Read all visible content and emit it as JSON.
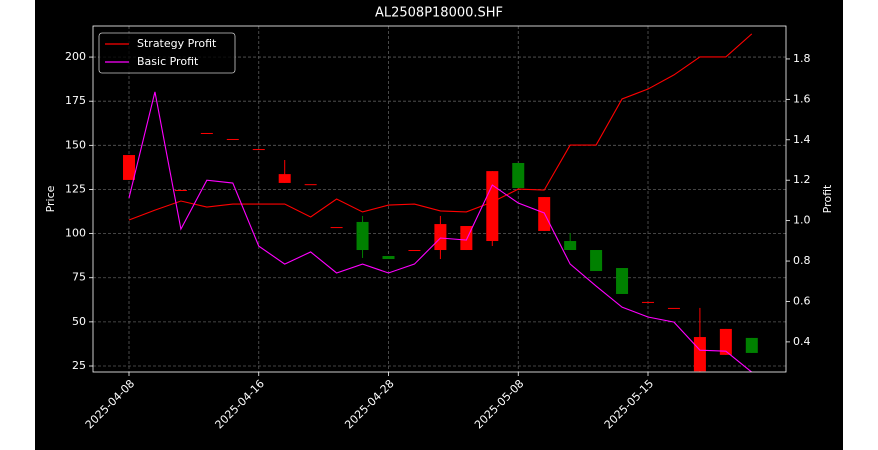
{
  "chart_data": {
    "type": "candlestick",
    "title": "AL2508P18000.SHF",
    "ylabel": "Price",
    "y2label": "Profit",
    "categories": [
      "2025-04-08",
      null,
      null,
      null,
      null,
      "2025-04-16",
      null,
      null,
      null,
      null,
      "2025-04-28",
      null,
      null,
      null,
      null,
      "2025-05-08",
      null,
      null,
      null,
      null,
      "2025-05-15",
      null,
      null,
      null,
      null
    ],
    "open": [
      130.4,
      null,
      124.7,
      157,
      153.6,
      147.9,
      128.7,
      128,
      103.7,
      106.6,
      87.3,
      90.7,
      90.7,
      90.7,
      95.8,
      140,
      101.5,
      95.8,
      90.7,
      80.5,
      61.3,
      57.9,
      22,
      31.3,
      40.9
    ],
    "high": [
      144.5,
      null,
      124.7,
      157,
      153.6,
      147.9,
      141.7,
      128,
      103.7,
      110,
      87.3,
      90.7,
      110,
      104.3,
      135.4,
      140,
      120.7,
      100.3,
      90.7,
      80.5,
      61.3,
      57.9,
      57.9,
      46,
      40.9
    ],
    "low": [
      130.4,
      null,
      124.7,
      157,
      153.6,
      147.9,
      128.7,
      128,
      103.7,
      86.2,
      85.6,
      90.7,
      85.6,
      90.7,
      93,
      125.8,
      101.5,
      90.7,
      78.8,
      65.8,
      61.3,
      57.9,
      21,
      31.3,
      32.4
    ],
    "close": [
      144.5,
      null,
      124.7,
      157,
      153.6,
      147.9,
      133.7,
      128,
      103.7,
      90.7,
      85.6,
      90.7,
      105.4,
      104.3,
      135.4,
      125.8,
      120.7,
      90.7,
      78.8,
      65.8,
      61.3,
      57.9,
      41.4,
      46,
      32.4
    ],
    "up_color": "#ff0000",
    "down_color": "#008000",
    "series": [
      {
        "name": "Strategy Profit",
        "color": "#ff0000",
        "axis": "y2",
        "values": [
          1.003,
          1.052,
          1.097,
          1.067,
          1.082,
          1.082,
          1.082,
          1.018,
          1.107,
          1.043,
          1.077,
          1.082,
          1.048,
          1.043,
          1.092,
          1.156,
          1.151,
          1.374,
          1.374,
          1.602,
          1.651,
          1.721,
          1.81,
          1.81,
          1.924
        ]
      },
      {
        "name": "Basic Profit",
        "color": "#ff00ff",
        "axis": "y2",
        "values": [
          1.112,
          1.637,
          0.958,
          1.2,
          1.186,
          0.874,
          0.785,
          0.845,
          0.741,
          0.785,
          0.741,
          0.785,
          0.914,
          0.904,
          1.176,
          1.087,
          1.038,
          0.785,
          0.676,
          0.572,
          0.523,
          0.498,
          0.359,
          0.354,
          0.25
        ]
      }
    ],
    "ylim": [
      21.6,
      217.6
    ],
    "yticks": [
      25,
      50,
      75,
      100,
      125,
      150,
      175,
      200
    ],
    "y2lim": [
      0.251,
      1.963
    ],
    "y2ticks": [
      0.4,
      0.6,
      0.8,
      1.0,
      1.2,
      1.4,
      1.6,
      1.8
    ],
    "grid": true,
    "legend": "upper left"
  }
}
